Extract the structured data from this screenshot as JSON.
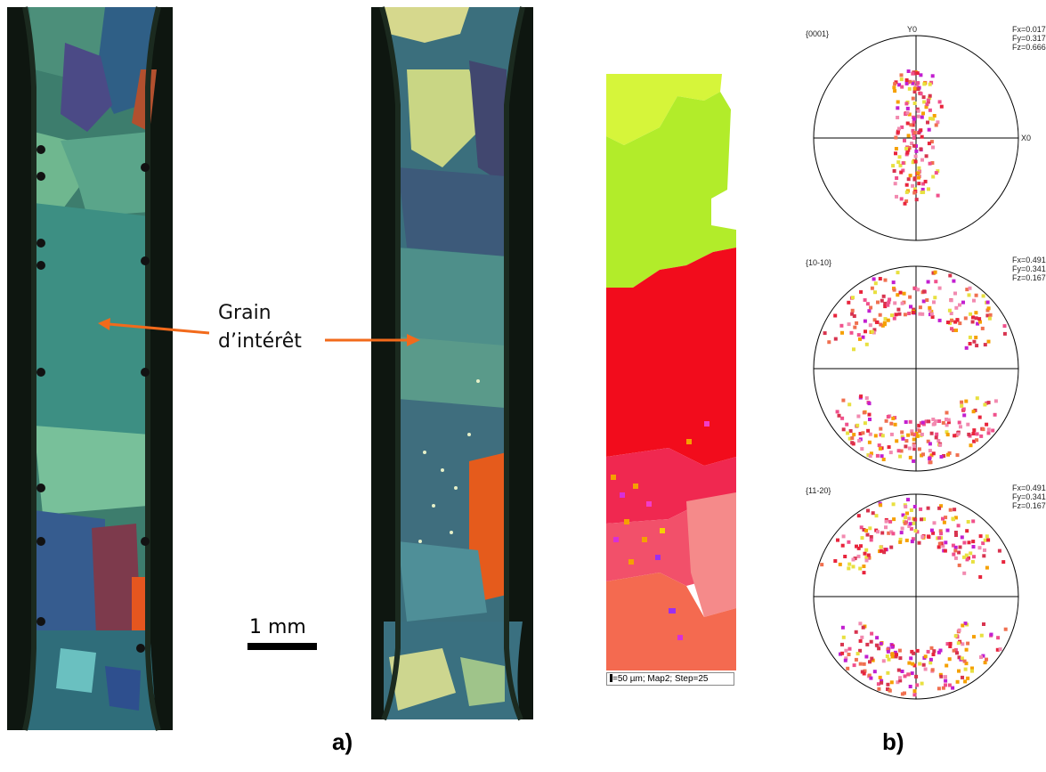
{
  "annotation": {
    "grain_line1": "Grain",
    "grain_line2": "d’intérêt",
    "arrow_color": "#f26a1b"
  },
  "scale_bar": {
    "label": "1 mm"
  },
  "panel_labels": {
    "a": "a)",
    "b": "b)"
  },
  "ebsd_map": {
    "caption": "=50 µm; Map2; Step=25"
  },
  "pole_figures": [
    {
      "title": "{0001}",
      "axis_top": "Y0",
      "axis_right": "X0",
      "fx": "Fx=0.017",
      "fy": "Fy=0.317",
      "fz": "Fz=0.666"
    },
    {
      "title": "{10-10}",
      "fx": "Fx=0.491",
      "fy": "Fy=0.341",
      "fz": "Fz=0.167"
    },
    {
      "title": "{11-20}",
      "fx": "Fx=0.491",
      "fy": "Fy=0.341",
      "fz": "Fz=0.167"
    }
  ],
  "colors": {
    "ebsd_yellow_green": "#d6f53a",
    "ebsd_green": "#b2ec2a",
    "ebsd_red": "#f20c1c",
    "ebsd_pink": "#f2506a",
    "ebsd_salmon": "#f58a8a",
    "pole_point_red": "#e8243c",
    "pole_point_pink": "#f0508c"
  }
}
